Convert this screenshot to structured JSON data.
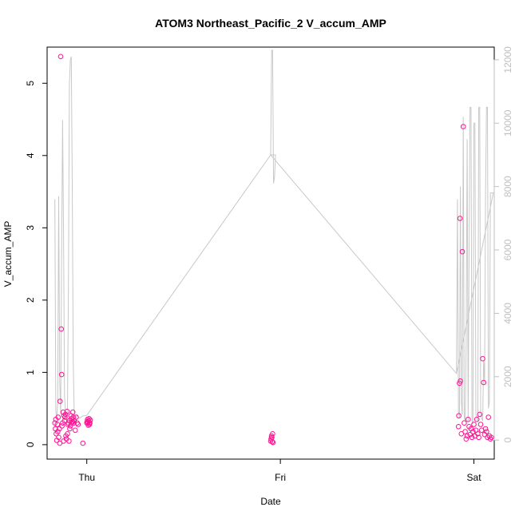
{
  "chart_data": {
    "type": "scatter",
    "title": "ATOM3 Northeast_Pacific_2 V_accum_AMP",
    "xlabel": "Date",
    "ylabel": "V_accum_AMP",
    "y2label": "",
    "x_tick_labels": [
      "Thu",
      "Fri",
      "Sat"
    ],
    "x_tick_positions_days": [
      1,
      2,
      3
    ],
    "xlim_days": [
      0.795,
      3.105
    ],
    "ylim": [
      -0.2,
      5.5
    ],
    "y_ticks": [
      0,
      1,
      2,
      3,
      4,
      5
    ],
    "y2lim": [
      -600,
      12400
    ],
    "y2_ticks": [
      0,
      2000,
      4000,
      6000,
      8000,
      10000,
      12000
    ],
    "grid": false,
    "series": [
      {
        "kind": "points",
        "axis": "left",
        "color": "#ff1493",
        "x": [
          0.835,
          0.838,
          0.84,
          0.842,
          0.845,
          0.848,
          0.85,
          0.852,
          0.855,
          0.858,
          0.86,
          0.862,
          0.865,
          0.868,
          0.87,
          0.872,
          0.875,
          0.878,
          0.88,
          0.882,
          0.885,
          0.888,
          0.89,
          0.892,
          0.895,
          0.898,
          0.9,
          0.902,
          0.905,
          0.908,
          0.91,
          0.912,
          0.915,
          0.918,
          0.92,
          0.922,
          0.925,
          0.928,
          0.93,
          0.932,
          0.935,
          0.94,
          0.945,
          0.95,
          0.955,
          0.98,
          1.0,
          1.002,
          1.004,
          1.006,
          1.008,
          1.01,
          1.012,
          1.014,
          1.016,
          1.018,
          1.95,
          1.952,
          1.954,
          1.956,
          1.958,
          1.96,
          1.962,
          2.92,
          2.922,
          2.925,
          2.928,
          2.93,
          2.935,
          2.94,
          2.945,
          2.95,
          2.955,
          2.96,
          2.965,
          2.97,
          2.975,
          2.98,
          2.985,
          2.99,
          2.995,
          3.0,
          3.005,
          3.01,
          3.015,
          3.02,
          3.025,
          3.03,
          3.035,
          3.04,
          3.045,
          3.05,
          3.055,
          3.06,
          3.065,
          3.07,
          3.075,
          3.08,
          3.085,
          3.09
        ],
        "y": [
          0.3,
          0.22,
          0.35,
          0.15,
          0.06,
          0.28,
          0.18,
          0.38,
          0.1,
          0.22,
          0.02,
          0.6,
          5.37,
          1.6,
          0.97,
          0.26,
          0.3,
          0.45,
          0.05,
          0.4,
          0.33,
          0.38,
          0.42,
          0.12,
          0.08,
          0.46,
          0.15,
          0.28,
          0.3,
          0.05,
          0.33,
          0.22,
          0.26,
          0.4,
          0.36,
          0.3,
          0.32,
          0.45,
          0.38,
          0.3,
          0.33,
          0.2,
          0.38,
          0.3,
          0.28,
          0.02,
          0.3,
          0.32,
          0.35,
          0.3,
          0.27,
          0.33,
          0.36,
          0.28,
          0.3,
          0.34,
          0.05,
          0.08,
          0.12,
          0.1,
          0.04,
          0.15,
          0.03,
          0.25,
          0.4,
          0.85,
          3.13,
          0.88,
          0.15,
          2.67,
          4.4,
          0.3,
          0.18,
          0.08,
          0.12,
          0.35,
          0.25,
          0.14,
          0.22,
          0.1,
          0.18,
          0.28,
          0.12,
          0.2,
          0.35,
          0.15,
          0.1,
          0.42,
          0.28,
          0.2,
          1.19,
          0.86,
          0.14,
          0.22,
          0.18,
          0.1,
          0.38,
          0.12,
          0.08,
          0.1
        ]
      },
      {
        "kind": "line",
        "axis": "right",
        "color": "#c8c8c8",
        "x": [
          0.835,
          0.84,
          0.845,
          0.85,
          0.855,
          0.86,
          0.865,
          0.87,
          0.875,
          0.88,
          0.885,
          0.89,
          0.895,
          0.9,
          0.905,
          0.91,
          0.915,
          0.92,
          0.925,
          0.93,
          0.935,
          0.94,
          0.945,
          0.95,
          0.955,
          0.96,
          0.965,
          0.97,
          0.975,
          0.98,
          1.0,
          1.95,
          1.955,
          1.96,
          1.965,
          1.97,
          1.975,
          1.95,
          2.91,
          2.915,
          2.92,
          2.925,
          2.93,
          2.935,
          2.94,
          2.945,
          2.95,
          2.955,
          2.96,
          2.965,
          2.97,
          2.975,
          2.98,
          2.985,
          2.99,
          2.995,
          3.0,
          3.005,
          3.01,
          3.015,
          3.02,
          3.025,
          3.03,
          3.035,
          3.04,
          3.045,
          3.05,
          3.055,
          3.06,
          3.065,
          3.07,
          3.075,
          3.08,
          3.085,
          3.09,
          3.095,
          3.1,
          3.1,
          2.91
        ],
        "y": [
          7600,
          900,
          700,
          1200,
          7700,
          1800,
          800,
          6000,
          10100,
          6500,
          1400,
          900,
          700,
          1000,
          4800,
          11200,
          12000,
          12100,
          8000,
          2500,
          900,
          600,
          700,
          800,
          750,
          700,
          700,
          720,
          740,
          760,
          780,
          9000,
          12300,
          12300,
          8100,
          8300,
          9000,
          9000,
          2100,
          7600,
          900,
          700,
          8000,
          1200,
          800,
          10200,
          700,
          600,
          3000,
          9500,
          600,
          6000,
          10500,
          10500,
          600,
          500,
          10000,
          10000,
          800,
          700,
          600,
          10500,
          10500,
          800,
          700,
          600,
          2500,
          1800,
          7800,
          10500,
          10500,
          1000,
          1200,
          7800,
          7800,
          7800,
          7800,
          7800,
          2100
        ]
      }
    ]
  }
}
